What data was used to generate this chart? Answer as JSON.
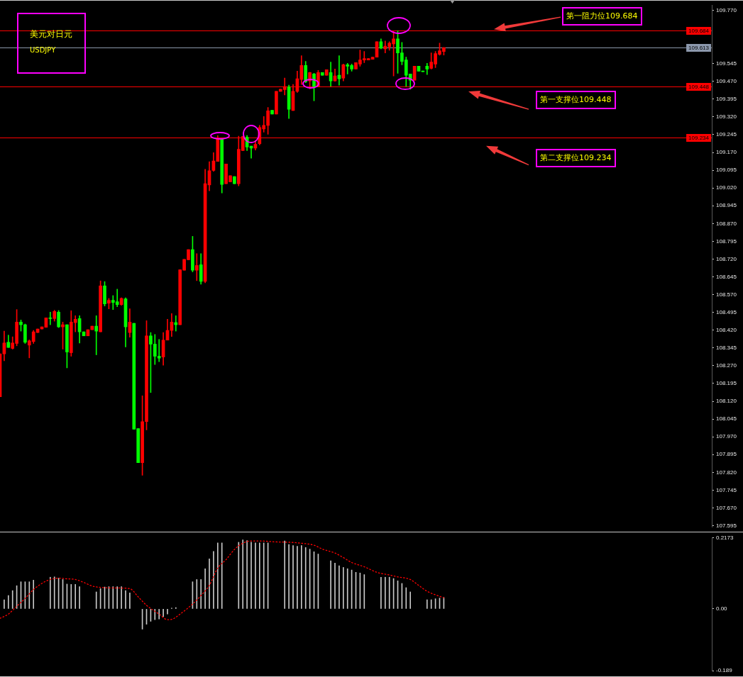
{
  "chart_data": [
    {
      "type": "candlestick",
      "title": "美元对日元",
      "subtitle": "USDJPY",
      "categories": [
        null,
        null,
        null,
        null,
        null,
        null,
        null,
        null,
        null,
        null,
        null,
        null,
        null,
        null,
        null,
        null,
        null,
        null,
        null,
        null,
        null,
        null,
        null,
        null,
        null,
        null,
        null,
        null,
        null,
        null,
        null,
        null,
        null,
        null,
        null,
        null,
        null,
        null,
        null,
        null,
        null,
        null,
        null,
        null,
        null,
        null,
        null,
        null,
        null,
        null,
        null,
        null,
        null,
        null,
        null,
        null,
        null,
        null,
        null,
        null,
        null,
        null,
        null,
        null,
        null,
        null,
        null,
        null,
        null,
        null,
        null,
        null,
        null,
        null,
        null,
        null,
        null,
        null,
        null,
        null,
        null,
        null,
        null,
        null,
        null,
        null,
        null,
        null,
        null,
        null,
        null,
        null,
        null,
        null,
        null,
        null,
        null,
        null,
        null,
        null,
        null,
        null,
        null,
        null,
        null,
        null,
        null,
        null,
        null,
        null,
        null,
        null,
        null,
        null,
        null,
        null,
        null,
        null,
        null,
        null,
        null,
        null,
        null,
        null,
        null,
        null,
        null,
        null,
        null,
        null,
        null,
        null,
        null,
        null,
        null,
        null,
        null,
        null,
        null,
        null,
        null,
        null,
        null,
        null,
        null,
        null,
        null,
        null,
        null,
        null,
        null,
        null,
        null,
        null,
        null,
        null,
        null,
        null,
        null,
        null,
        null,
        null,
        null,
        null,
        null,
        null,
        null,
        null,
        null,
        null,
        null
      ],
      "ohlc": [
        [
          108.139,
          108.32,
          108.139,
          108.32
        ],
        [
          108.32,
          108.416,
          108.291,
          108.366
        ],
        [
          108.369,
          108.399,
          108.347,
          108.347
        ],
        [
          108.343,
          108.392,
          108.34,
          108.366
        ],
        [
          108.364,
          108.507,
          108.354,
          108.454
        ],
        [
          108.454,
          108.463,
          108.416,
          108.443
        ],
        [
          108.443,
          108.446,
          108.364,
          108.369
        ],
        [
          108.357,
          108.379,
          108.303,
          108.375
        ],
        [
          108.372,
          108.419,
          108.364,
          108.413
        ],
        [
          108.41,
          108.425,
          108.41,
          108.425
        ],
        [
          108.425,
          108.434,
          108.425,
          108.434
        ],
        [
          108.432,
          108.472,
          108.432,
          108.472
        ],
        [
          108.472,
          108.496,
          108.443,
          108.469
        ],
        [
          108.469,
          108.504,
          108.458,
          108.499
        ],
        [
          108.496,
          108.503,
          108.431,
          108.434
        ],
        [
          108.434,
          108.454,
          108.34,
          108.443
        ],
        [
          108.443,
          108.443,
          108.261,
          108.328
        ],
        [
          108.325,
          108.502,
          108.31,
          108.454
        ],
        [
          108.452,
          108.481,
          108.413,
          108.466
        ],
        [
          108.469,
          108.481,
          108.366,
          108.413
        ],
        [
          108.413,
          108.413,
          108.396,
          108.396
        ],
        [
          108.396,
          108.422,
          108.396,
          108.422
        ],
        [
          108.422,
          108.437,
          108.422,
          108.437
        ],
        [
          108.437,
          108.481,
          108.316,
          108.416
        ],
        [
          108.413,
          108.628,
          108.413,
          108.607
        ],
        [
          108.607,
          108.625,
          108.522,
          108.531
        ],
        [
          108.534,
          108.554,
          108.51,
          108.546
        ],
        [
          108.546,
          108.566,
          108.507,
          108.537
        ],
        [
          108.54,
          108.593,
          108.519,
          108.528
        ],
        [
          108.528,
          108.557,
          108.525,
          108.554
        ],
        [
          108.552,
          108.557,
          108.349,
          108.434
        ],
        [
          108.41,
          108.51,
          108.39,
          108.454
        ],
        [
          108.449,
          108.449,
          108.002,
          108.002
        ],
        [
          108.005,
          108.005,
          107.861,
          107.861
        ],
        [
          107.861,
          108.143,
          107.808,
          108.034
        ],
        [
          108.034,
          108.46,
          107.999,
          108.396
        ],
        [
          108.396,
          108.41,
          108.157,
          108.361
        ],
        [
          108.361,
          108.402,
          108.275,
          108.31
        ],
        [
          108.31,
          108.381,
          108.287,
          108.302
        ],
        [
          108.307,
          108.41,
          108.272,
          108.378
        ],
        [
          108.378,
          108.466,
          108.378,
          108.419
        ],
        [
          108.419,
          108.49,
          108.393,
          108.454
        ],
        [
          108.452,
          108.481,
          108.416,
          108.443
        ],
        [
          108.443,
          108.675,
          108.443,
          108.675
        ],
        [
          108.673,
          108.719,
          108.673,
          108.719
        ],
        [
          108.717,
          108.76,
          108.717,
          108.76
        ],
        [
          108.76,
          108.816,
          108.666,
          108.673
        ],
        [
          108.673,
          108.743,
          108.629,
          108.693
        ],
        [
          108.696,
          108.743,
          108.614,
          108.626
        ],
        [
          108.626,
          109.099,
          108.62,
          109.038
        ],
        [
          109.033,
          109.131,
          109.008,
          109.093
        ],
        [
          109.094,
          109.169,
          109.09,
          109.134
        ],
        [
          109.132,
          109.241,
          109.132,
          109.227
        ],
        [
          109.227,
          109.229,
          108.999,
          109.035
        ],
        [
          109.038,
          109.121,
          109.038,
          109.121
        ],
        [
          109.046,
          109.072,
          109.046,
          109.072
        ],
        [
          109.068,
          109.068,
          109.038,
          109.038
        ],
        [
          109.038,
          109.239,
          109.029,
          109.183
        ],
        [
          109.178,
          109.237,
          109.178,
          109.237
        ],
        [
          109.234,
          109.242,
          109.178,
          109.193
        ],
        [
          109.197,
          109.197,
          109.146,
          109.188
        ],
        [
          109.188,
          109.221,
          109.18,
          109.204
        ],
        [
          109.207,
          109.284,
          109.202,
          109.275
        ],
        [
          109.269,
          109.322,
          109.256,
          109.284
        ],
        [
          109.284,
          109.36,
          109.247,
          109.346
        ],
        [
          109.348,
          109.348,
          109.332,
          109.332
        ],
        [
          109.332,
          109.428,
          109.332,
          109.428
        ],
        [
          109.428,
          109.437,
          109.428,
          109.437
        ],
        [
          109.435,
          109.484,
          109.413,
          109.448
        ],
        [
          109.446,
          109.454,
          109.313,
          109.352
        ],
        [
          109.347,
          109.457,
          109.347,
          109.428
        ],
        [
          109.428,
          109.513,
          109.423,
          109.481
        ],
        [
          109.478,
          109.578,
          109.457,
          109.537
        ],
        [
          109.537,
          109.554,
          109.464,
          109.468
        ],
        [
          109.472,
          109.509,
          109.438,
          109.507
        ],
        [
          109.501,
          109.504,
          109.388,
          109.448
        ],
        [
          109.448,
          109.516,
          109.448,
          109.507
        ],
        [
          109.507,
          109.507,
          109.496,
          109.496
        ],
        [
          109.496,
          109.519,
          109.496,
          109.519
        ],
        [
          109.507,
          109.551,
          109.449,
          109.472
        ],
        [
          109.472,
          109.522,
          109.47,
          109.493
        ],
        [
          109.496,
          109.578,
          109.454,
          109.481
        ],
        [
          109.484,
          109.543,
          109.472,
          109.54
        ],
        [
          109.54,
          109.546,
          109.501,
          109.534
        ],
        [
          109.537,
          109.543,
          109.513,
          109.522
        ],
        [
          109.522,
          109.549,
          109.522,
          109.549
        ],
        [
          109.543,
          109.602,
          109.534,
          109.56
        ],
        [
          109.56,
          109.596,
          109.549,
          109.566
        ],
        [
          109.56,
          109.566,
          109.56,
          109.566
        ],
        [
          109.563,
          109.572,
          109.563,
          109.572
        ],
        [
          109.572,
          109.637,
          109.572,
          109.637
        ],
        [
          109.637,
          109.649,
          109.607,
          109.61
        ],
        [
          109.607,
          109.64,
          109.59,
          109.619
        ],
        [
          109.616,
          109.637,
          109.601,
          109.631
        ],
        [
          109.628,
          109.684,
          109.493,
          109.649
        ],
        [
          109.649,
          109.684,
          109.504,
          109.59
        ],
        [
          109.59,
          109.634,
          109.54,
          109.554
        ],
        [
          109.56,
          109.572,
          109.449,
          109.496
        ],
        [
          109.501,
          109.501,
          109.437,
          109.475
        ],
        [
          109.475,
          109.534,
          109.475,
          109.534
        ],
        [
          109.534,
          109.534,
          109.513,
          109.513
        ],
        [
          109.513,
          109.513,
          109.511,
          109.511
        ],
        [
          109.534,
          109.546,
          109.499,
          109.522
        ],
        [
          109.525,
          109.59,
          109.522,
          109.551
        ],
        [
          109.543,
          109.596,
          109.528,
          109.587
        ],
        [
          109.584,
          109.631,
          109.58,
          109.599
        ],
        [
          109.596,
          109.613,
          109.581,
          109.613
        ],
        null,
        null,
        null,
        null,
        null,
        null,
        null,
        null,
        null,
        null,
        null,
        null,
        null,
        null,
        null,
        null,
        null,
        null,
        null,
        null,
        null,
        null,
        null,
        null,
        null,
        null,
        null,
        null,
        null,
        null,
        null,
        null,
        null,
        null,
        null,
        null,
        null,
        null,
        null,
        null,
        null,
        null,
        null,
        null,
        null,
        null,
        null,
        null,
        null,
        null,
        null,
        null,
        null,
        null,
        null,
        null,
        null,
        null,
        null,
        null,
        null,
        null,
        null,
        null
      ],
      "colors": [
        "#ff0000",
        "#ff0000",
        "#00ff00",
        "#ff0000",
        "#ff0000",
        "#00ff00",
        "#00ff00",
        "#ff0000",
        "#ff0000",
        "#ff0000",
        "#ff0000",
        "#ff0000",
        "#00ff00",
        "#ff0000",
        "#00ff00",
        "#ff0000",
        "#00ff00",
        "#ff0000",
        "#ff0000",
        "#00ff00",
        "#00ff00",
        "#ff0000",
        "#ff0000",
        "#00ff00",
        "#ff0000",
        "#00ff00",
        "#ff0000",
        "#00ff00",
        "#00ff00",
        "#ff0000",
        "#00ff00",
        "#ff0000",
        "#00ff00",
        "#00ff00",
        "#ff0000",
        "#ff0000",
        "#00ff00",
        "#00ff00",
        "#00ff00",
        "#ff0000",
        "#ff0000",
        "#ff0000",
        "#00ff00",
        "#ff0000",
        "#ff0000",
        "#ff0000",
        "#00ff00",
        "#ff0000",
        "#00ff00",
        "#ff0000",
        "#ff0000",
        "#ff0000",
        "#ff0000",
        "#00ff00",
        "#ff0000",
        "#ff0000",
        "#00ff00",
        "#ff0000",
        "#ff0000",
        "#00ff00",
        "#00ff00",
        "#ff0000",
        "#ff0000",
        "#ff0000",
        "#ff0000",
        "#00ff00",
        "#ff0000",
        "#ff0000",
        "#ff0000",
        "#00ff00",
        "#ff0000",
        "#ff0000",
        "#ff0000",
        "#00ff00",
        "#ff0000",
        "#00ff00",
        "#ff0000",
        "#00ff00",
        "#ff0000",
        "#00ff00",
        "#ff0000",
        "#00ff00",
        "#ff0000",
        "#00ff00",
        "#00ff00",
        "#ff0000",
        "#ff0000",
        "#ff0000",
        "#ff0000",
        "#ff0000",
        "#ff0000",
        "#00ff00",
        "#ff0000",
        "#ff0000",
        "#ff0000",
        "#00ff00",
        "#00ff00",
        "#00ff00",
        "#00ff00",
        "#ff0000",
        "#00ff00",
        "#00ff00",
        "#00ff00",
        "#ff0000",
        "#ff0000",
        "#ff0000",
        "#ff0000",
        null,
        null,
        null,
        null,
        null,
        null,
        null,
        null,
        null,
        null,
        null,
        null,
        null,
        null,
        null,
        null,
        null,
        null,
        null,
        null,
        null,
        null,
        null,
        null,
        null,
        null,
        null,
        null,
        null,
        null,
        null,
        null,
        null,
        null,
        null,
        null,
        null,
        null,
        null,
        null,
        null,
        null,
        null,
        null,
        null,
        null,
        null,
        null,
        null,
        null,
        null,
        null,
        null,
        null,
        null,
        null,
        null,
        null,
        null,
        null,
        null,
        null,
        null,
        null
      ],
      "ylim": [
        107.59,
        109.79
      ],
      "yticks": [
        {
          "value": 109.77,
          "label": "109.770"
        },
        109.545,
        {
          "value": 109.47,
          "label": "109.470"
        },
        109.395,
        {
          "value": 109.32,
          "label": "109.320"
        },
        109.245,
        {
          "value": 109.17,
          "label": "109.170"
        },
        109.095,
        {
          "value": 109.02,
          "label": "109.020"
        },
        108.945,
        {
          "value": 108.87,
          "label": "108.870"
        },
        108.795,
        {
          "value": 108.72,
          "label": "108.720"
        },
        108.645,
        {
          "value": 108.57,
          "label": "108.570"
        },
        108.495,
        {
          "value": 108.42,
          "label": "108.420"
        },
        108.345,
        {
          "value": 108.27,
          "label": "108.270"
        },
        108.195,
        {
          "value": 108.12,
          "label": "108.120"
        },
        108.045,
        {
          "value": 107.97,
          "label": "107.970"
        },
        107.895,
        {
          "value": 107.82,
          "label": "107.820"
        },
        107.745,
        {
          "value": 107.67,
          "label": "107.670"
        },
        107.595
      ],
      "tick_labels": "y",
      "ref_lines": [
        {
          "axis": "y",
          "value": 109.684,
          "label": "109.684",
          "color": "#ff0000"
        },
        {
          "axis": "y",
          "value": 109.613,
          "label": "109.613",
          "color": "#8c98ac"
        },
        {
          "axis": "y",
          "value": 109.448,
          "label": "109.448",
          "color": "#ff0000"
        },
        {
          "axis": "y",
          "value": 109.234,
          "label": "109.234",
          "color": "#ff0000"
        }
      ],
      "annotations": [
        {
          "text": "第一阻力位109.684",
          "y": 109.684
        },
        {
          "text": "第一支撑位109.448",
          "y": 109.448
        },
        {
          "text": "第二支撑位109.234",
          "y": 109.234
        }
      ]
    },
    {
      "type": "bar",
      "categories": [
        null,
        null,
        null,
        null,
        null,
        null,
        null,
        null,
        null,
        null,
        null,
        null,
        null,
        null,
        null,
        null,
        null,
        null,
        null,
        null,
        null,
        null,
        null,
        null,
        null,
        null,
        null,
        null,
        null,
        null,
        null,
        null,
        null,
        null,
        null,
        null,
        null,
        null,
        null,
        null,
        null,
        null,
        null,
        null,
        null,
        null,
        null,
        null,
        null,
        null,
        null,
        null,
        null,
        null,
        null,
        null,
        null,
        null,
        null,
        null,
        null,
        null,
        null,
        null,
        null,
        null,
        null,
        null,
        null,
        null,
        null,
        null,
        null,
        null,
        null,
        null,
        null,
        null,
        null,
        null,
        null,
        null,
        null,
        null,
        null,
        null,
        null,
        null,
        null,
        null,
        null,
        null,
        null,
        null,
        null,
        null,
        null,
        null,
        null,
        null,
        null,
        null,
        null,
        null,
        null,
        null,
        null,
        null,
        null,
        null,
        null,
        null,
        null,
        null,
        null,
        null,
        null,
        null,
        null,
        null,
        null,
        null,
        null,
        null,
        null,
        null,
        null,
        null,
        null,
        null,
        null,
        null,
        null,
        null,
        null,
        null,
        null,
        null,
        null,
        null,
        null,
        null,
        null,
        null,
        null,
        null,
        null,
        null,
        null,
        null,
        null,
        null,
        null,
        null,
        null,
        null,
        null,
        null,
        null,
        null,
        null,
        null,
        null,
        null,
        null,
        null,
        null,
        null,
        null,
        null,
        null
      ],
      "series": [
        {
          "type": "bar",
          "color": "#c8c8c8",
          "values": [
            null,
            0.028,
            0.041,
            0.056,
            0.071,
            0.083,
            0.083,
            0.083,
            0.088,
            null,
            null,
            null,
            0.097,
            0.098,
            0.094,
            0.09,
            0.076,
            0.075,
            0.075,
            0.068,
            null,
            null,
            null,
            0.052,
            0.062,
            0.067,
            0.068,
            0.068,
            0.068,
            0.068,
            0.056,
            0.049,
            null,
            null,
            -0.062,
            -0.047,
            -0.038,
            -0.033,
            -0.031,
            -0.024,
            -0.016,
            0.002,
            0.004,
            null,
            null,
            null,
            0.083,
            0.09,
            0.09,
            0.123,
            0.153,
            0.176,
            0.202,
            0.202,
            null,
            null,
            null,
            0.204,
            0.211,
            0.209,
            0.204,
            0.202,
            0.202,
            0.202,
            0.202,
            null,
            null,
            null,
            0.208,
            0.197,
            0.194,
            0.192,
            0.194,
            0.188,
            0.183,
            0.175,
            0.168,
            null,
            null,
            0.147,
            0.14,
            0.132,
            0.127,
            0.123,
            0.119,
            0.112,
            0.11,
            0.105,
            null,
            null,
            null,
            0.097,
            0.097,
            0.097,
            0.093,
            0.086,
            0.078,
            0.065,
            0.052,
            null,
            null,
            null,
            0.028,
            0.028,
            0.031,
            0.033,
            0.035,
            null,
            null,
            null,
            null,
            null,
            null,
            null,
            null,
            null,
            null,
            null,
            null,
            null,
            null,
            null,
            null,
            null,
            null,
            null,
            null,
            null,
            null,
            null,
            null,
            null,
            null,
            null,
            null,
            null,
            null,
            null,
            null,
            null,
            null,
            null,
            null,
            null,
            null,
            null,
            null,
            null,
            null,
            null,
            null,
            null,
            null,
            null,
            null,
            null,
            null,
            null,
            null,
            null,
            null,
            null,
            null,
            null,
            null,
            null,
            null,
            null,
            null,
            null,
            null
          ]
        },
        {
          "type": "line",
          "color": "#ff0000",
          "line_style": "dotted",
          "values": [
            -0.029,
            null,
            -0.016,
            null,
            0.008,
            null,
            0.032,
            null,
            0.059,
            null,
            0.078,
            null,
            0.09,
            null,
            0.094,
            null,
            0.092,
            null,
            0.09,
            null,
            0.081,
            null,
            0.07,
            null,
            null,
            0.065,
            null,
            null,
            0.064,
            null,
            null,
            0.062,
            null,
            0.037,
            null,
            0.011,
            null,
            null,
            -0.016,
            null,
            -0.033,
            -0.032,
            null,
            -0.016,
            null,
            null,
            0.015,
            null,
            0.041,
            null,
            0.072,
            null,
            0.125,
            null,
            0.151,
            null,
            0.182,
            null,
            0.201,
            null,
            0.208,
            null,
            0.208,
            null,
            null,
            null,
            0.205,
            null,
            null,
            0.204,
            null,
            null,
            0.201,
            null,
            null,
            0.195,
            null,
            0.183,
            null,
            null,
            0.171,
            null,
            0.157,
            null,
            0.142,
            null,
            null,
            0.129,
            null,
            null,
            0.112,
            null,
            null,
            0.104,
            null,
            0.098,
            null,
            null,
            0.09,
            null,
            0.072,
            null,
            0.054,
            null,
            0.043,
            null,
            0.034,
            null,
            null,
            null,
            null,
            null,
            null,
            null,
            null,
            null,
            null,
            null,
            null,
            null,
            null,
            null,
            null,
            null,
            null,
            null,
            null,
            null,
            null,
            null,
            null,
            null,
            null,
            null,
            null,
            null,
            null,
            null,
            null,
            null,
            null,
            null,
            null,
            null,
            null,
            null,
            null,
            null,
            null,
            null,
            null,
            null,
            null,
            null,
            null,
            null,
            null,
            null,
            null,
            null,
            null,
            null,
            null,
            null,
            null,
            null,
            null,
            null,
            null,
            null,
            null
          ]
        }
      ],
      "ylim": [
        -0.189,
        0.2173
      ],
      "yticks": [
        0.2173,
        {
          "value": 0,
          "label": "0.00"
        },
        -0.189
      ],
      "tick_labels": "y"
    }
  ]
}
